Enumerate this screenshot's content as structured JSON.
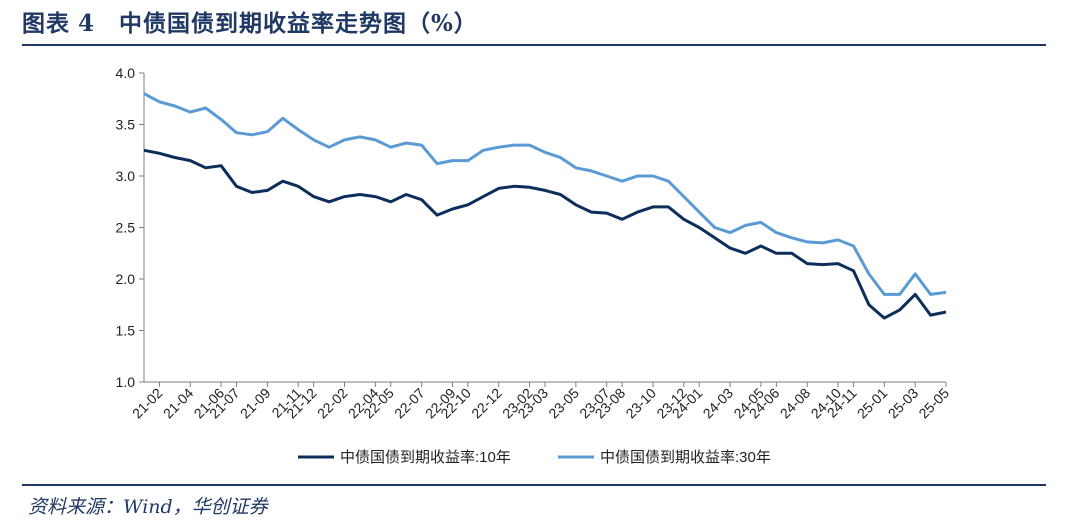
{
  "figure": {
    "label": "图表",
    "number": "4",
    "title": "中债国债到期收益率走势图（%）",
    "source": "资料来源：Wind，华创证券"
  },
  "chart_data": {
    "type": "line",
    "title": "",
    "xlabel": "",
    "ylabel": "",
    "ylim": [
      1.0,
      4.0
    ],
    "yticks": [
      "4.0",
      "3.5",
      "3.0",
      "2.5",
      "2.0",
      "1.5",
      "1.0"
    ],
    "xlim": [
      "2021-01",
      "2025-05"
    ],
    "xticks": [
      "21-02",
      "21-04",
      "21-06",
      "21-07",
      "21-09",
      "21-11",
      "21-12",
      "22-02",
      "22-04",
      "22-05",
      "22-07",
      "22-09",
      "22-10",
      "22-12",
      "23-02",
      "23-03",
      "23-05",
      "23-07",
      "23-08",
      "23-10",
      "23-12",
      "24-01",
      "24-03",
      "24-05",
      "24-06",
      "24-08",
      "24-10",
      "24-11",
      "25-01",
      "25-03",
      "25-05"
    ],
    "grid": false,
    "legend_position": "bottom",
    "series": [
      {
        "name": "中债国债到期收益率:10年",
        "color": "#0d2d5a",
        "x": [
          "2021-01",
          "2021-02",
          "2021-03",
          "2021-04",
          "2021-05",
          "2021-06",
          "2021-07",
          "2021-08",
          "2021-09",
          "2021-10",
          "2021-11",
          "2021-12",
          "2022-01",
          "2022-02",
          "2022-03",
          "2022-04",
          "2022-05",
          "2022-06",
          "2022-07",
          "2022-08",
          "2022-09",
          "2022-10",
          "2022-11",
          "2022-12",
          "2023-01",
          "2023-02",
          "2023-03",
          "2023-04",
          "2023-05",
          "2023-06",
          "2023-07",
          "2023-08",
          "2023-09",
          "2023-10",
          "2023-11",
          "2023-12",
          "2024-01",
          "2024-02",
          "2024-03",
          "2024-04",
          "2024-05",
          "2024-06",
          "2024-07",
          "2024-08",
          "2024-09",
          "2024-10",
          "2024-11",
          "2024-12",
          "2025-01",
          "2025-02",
          "2025-03",
          "2025-04",
          "2025-05"
        ],
        "values": [
          3.25,
          3.22,
          3.18,
          3.15,
          3.08,
          3.1,
          2.9,
          2.84,
          2.86,
          2.95,
          2.9,
          2.8,
          2.75,
          2.8,
          2.82,
          2.8,
          2.75,
          2.82,
          2.77,
          2.62,
          2.68,
          2.72,
          2.8,
          2.88,
          2.9,
          2.89,
          2.86,
          2.82,
          2.72,
          2.65,
          2.64,
          2.58,
          2.65,
          2.7,
          2.7,
          2.58,
          2.5,
          2.4,
          2.3,
          2.25,
          2.32,
          2.25,
          2.25,
          2.15,
          2.14,
          2.15,
          2.08,
          1.75,
          1.62,
          1.7,
          1.85,
          1.65,
          1.68
        ]
      },
      {
        "name": "中债国债到期收益率:30年",
        "color": "#5b9bd5",
        "x": [
          "2021-01",
          "2021-02",
          "2021-03",
          "2021-04",
          "2021-05",
          "2021-06",
          "2021-07",
          "2021-08",
          "2021-09",
          "2021-10",
          "2021-11",
          "2021-12",
          "2022-01",
          "2022-02",
          "2022-03",
          "2022-04",
          "2022-05",
          "2022-06",
          "2022-07",
          "2022-08",
          "2022-09",
          "2022-10",
          "2022-11",
          "2022-12",
          "2023-01",
          "2023-02",
          "2023-03",
          "2023-04",
          "2023-05",
          "2023-06",
          "2023-07",
          "2023-08",
          "2023-09",
          "2023-10",
          "2023-11",
          "2023-12",
          "2024-01",
          "2024-02",
          "2024-03",
          "2024-04",
          "2024-05",
          "2024-06",
          "2024-07",
          "2024-08",
          "2024-09",
          "2024-10",
          "2024-11",
          "2024-12",
          "2025-01",
          "2025-02",
          "2025-03",
          "2025-04",
          "2025-05"
        ],
        "values": [
          3.8,
          3.72,
          3.68,
          3.62,
          3.66,
          3.55,
          3.42,
          3.4,
          3.43,
          3.56,
          3.45,
          3.35,
          3.28,
          3.35,
          3.38,
          3.35,
          3.28,
          3.32,
          3.3,
          3.12,
          3.15,
          3.15,
          3.25,
          3.28,
          3.3,
          3.3,
          3.23,
          3.18,
          3.08,
          3.05,
          3.0,
          2.95,
          3.0,
          3.0,
          2.95,
          2.8,
          2.65,
          2.5,
          2.45,
          2.52,
          2.55,
          2.45,
          2.4,
          2.36,
          2.35,
          2.38,
          2.32,
          2.05,
          1.85,
          1.85,
          2.05,
          1.85,
          1.87
        ]
      }
    ]
  }
}
